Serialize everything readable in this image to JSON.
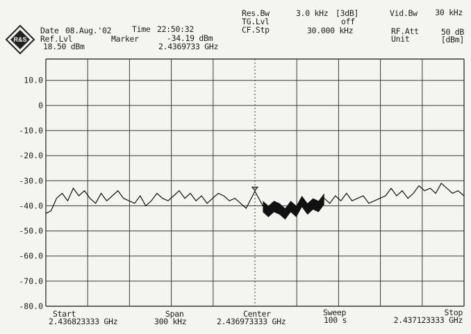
{
  "header": {
    "date_label": "Date",
    "date_value": "08.Aug.'02",
    "time_label": "Time",
    "time_value": "22:50:32",
    "ref_lvl_label": "Ref.Lvl",
    "ref_lvl_value": "18.50 dBm",
    "marker_label": "Marker",
    "marker_level": "-34.19 dBm",
    "marker_freq": "2.4369733 GHz",
    "res_bw_label": "Res.Bw",
    "res_bw_value": "3.0 kHz",
    "res_bw_mode": "[3dB]",
    "tg_lvl_label": "TG.Lvl",
    "tg_lvl_value": "off",
    "cf_stp_label": "CF.Stp",
    "cf_stp_value": "30.000 kHz",
    "vid_bw_label": "Vid.Bw",
    "vid_bw_value": "30 kHz",
    "rf_att_label": "RF.Att",
    "rf_att_value": "50 dB",
    "unit_label": "Unit",
    "unit_value": "[dBm]"
  },
  "logo_text": "R&S",
  "footer": {
    "start_label": "Start",
    "start_value": "2.436823333 GHz",
    "span_label": "Span",
    "span_value": "300 kHz",
    "center_label": "Center",
    "center_value": "2.436973333 GHz",
    "sweep_label": "Sweep",
    "sweep_value": "100 s",
    "stop_label": "Stop",
    "stop_value": "2.437123333 GHz"
  },
  "chart_data": {
    "type": "line",
    "title": "",
    "xlabel": "",
    "ylabel": "",
    "x_unit": "GHz",
    "y_unit": "dBm",
    "xlim": [
      2.436823333,
      2.437123333
    ],
    "ylim": [
      -80,
      18.5
    ],
    "y_ticks": [
      10,
      0,
      -10,
      -20,
      -30,
      -40,
      -50,
      -60,
      -70,
      -80
    ],
    "y_tick_labels": [
      "10.0",
      "0",
      "-10.0",
      "-20.0",
      "-30.0",
      "-40.0",
      "-50.0",
      "-60.0",
      "-70.0",
      "-80.0"
    ],
    "x_divisions": 10,
    "grid": true,
    "marker": {
      "x": 2.4369733,
      "y": -34.19
    },
    "series": [
      {
        "x": [
          2.436823333,
          2.436827,
          2.436831,
          2.436835,
          2.436839,
          2.436843,
          2.436847,
          2.436851,
          2.436855,
          2.436859,
          2.436863,
          2.436867,
          2.436871,
          2.436875,
          2.436879,
          2.436883,
          2.436887,
          2.436891,
          2.436895,
          2.436899,
          2.436903,
          2.436907,
          2.436911,
          2.436915,
          2.436919,
          2.436923,
          2.436927,
          2.436931,
          2.436935,
          2.436939,
          2.436943,
          2.436947,
          2.436951,
          2.436955,
          2.436959,
          2.436963,
          2.436967,
          2.4369733,
          2.436979,
          2.436983,
          2.436987,
          2.436991,
          2.436995,
          2.436999,
          2.437003,
          2.437007,
          2.437011,
          2.437015,
          2.437019,
          2.437023,
          2.437027,
          2.437031,
          2.437035,
          2.437039,
          2.437043,
          2.437047,
          2.437051,
          2.437055,
          2.437059,
          2.437063,
          2.437067,
          2.437071,
          2.437075,
          2.437079,
          2.437083,
          2.437087,
          2.437091,
          2.437095,
          2.437099,
          2.437103,
          2.437107,
          2.437111,
          2.437115,
          2.437119,
          2.437123333
        ],
        "y": [
          -43,
          -42,
          -37,
          -35,
          -38,
          -33,
          -36,
          -34,
          -37,
          -39,
          -35,
          -38,
          -36,
          -34,
          -37,
          -38,
          -39,
          -36,
          -40,
          -38,
          -35,
          -37,
          -38,
          -36,
          -34,
          -37,
          -35,
          -38,
          -36,
          -39,
          -37,
          -35,
          -36,
          -38,
          -37,
          -39,
          -41,
          -34.19,
          -40,
          -42,
          -40,
          -41,
          -43,
          -40,
          -42,
          -38,
          -41,
          -39,
          -40,
          -37,
          -39,
          -36,
          -38,
          -35,
          -38,
          -37,
          -36,
          -39,
          -38,
          -37,
          -36,
          -33,
          -36,
          -34,
          -37,
          -35,
          -32,
          -34,
          -33,
          -35,
          -31,
          -33,
          -35,
          -34,
          -36
        ]
      }
    ]
  }
}
